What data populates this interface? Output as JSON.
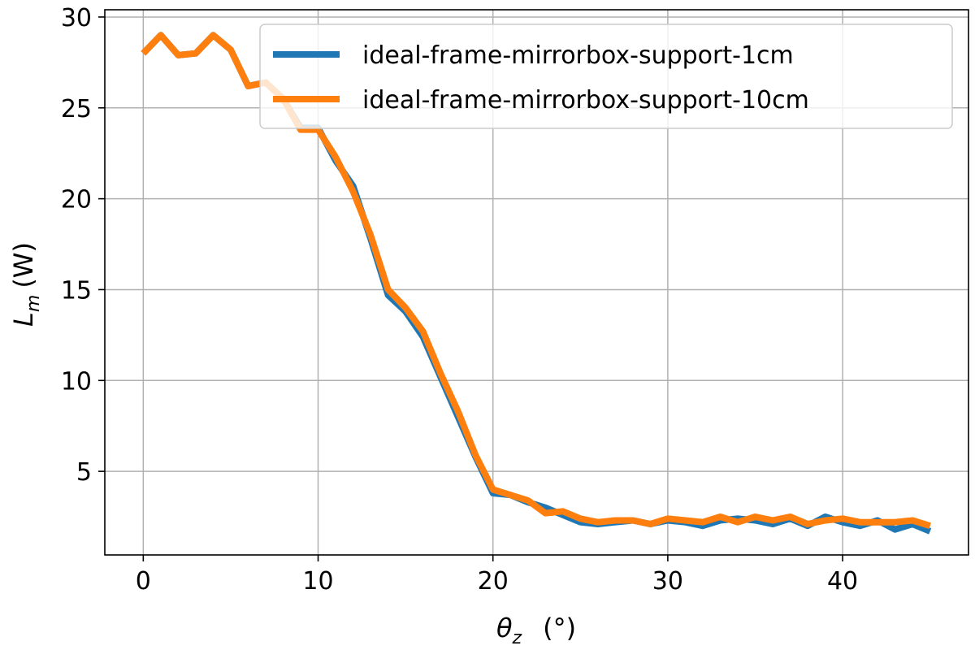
{
  "chart_data": {
    "type": "line",
    "xlabel_symbol": "θ",
    "xlabel_sub": "z",
    "xlabel_unit": "(°)",
    "ylabel_symbol": "L",
    "ylabel_sub": "m",
    "ylabel_unit": "(W)",
    "xlim": [
      -2.2,
      47.2
    ],
    "ylim": [
      0.4,
      30.4
    ],
    "xticks": [
      0,
      10,
      20,
      30,
      40
    ],
    "yticks": [
      5,
      10,
      15,
      20,
      25,
      30
    ],
    "grid": true,
    "legend_position": "top-right",
    "x": [
      0,
      1,
      2,
      3,
      4,
      5,
      6,
      7,
      8,
      9,
      10,
      11,
      12,
      13,
      14,
      15,
      16,
      17,
      18,
      19,
      20,
      21,
      22,
      23,
      24,
      25,
      26,
      27,
      28,
      29,
      30,
      31,
      32,
      33,
      34,
      35,
      36,
      37,
      38,
      39,
      40,
      41,
      42,
      43,
      44,
      45
    ],
    "series": [
      {
        "name": "ideal-frame-mirrorbox-support-1cm",
        "color": "#1f77b4",
        "values": [
          28.0,
          29.0,
          27.9,
          28.0,
          29.0,
          28.2,
          26.2,
          26.4,
          25.5,
          23.9,
          23.9,
          22.1,
          20.7,
          17.8,
          14.7,
          13.8,
          12.4,
          10.2,
          8.0,
          5.8,
          3.8,
          3.7,
          3.3,
          3.0,
          2.6,
          2.2,
          2.1,
          2.2,
          2.3,
          2.1,
          2.3,
          2.2,
          2.0,
          2.3,
          2.4,
          2.3,
          2.1,
          2.4,
          2.0,
          2.5,
          2.2,
          2.0,
          2.3,
          1.8,
          2.1,
          1.7
        ]
      },
      {
        "name": "ideal-frame-mirrorbox-support-10cm",
        "color": "#ff7f0e",
        "values": [
          28.0,
          29.0,
          27.9,
          28.0,
          29.0,
          28.2,
          26.2,
          26.4,
          25.5,
          23.8,
          23.8,
          22.3,
          20.4,
          18.0,
          15.0,
          14.0,
          12.7,
          10.4,
          8.3,
          5.9,
          4.0,
          3.7,
          3.4,
          2.7,
          2.8,
          2.4,
          2.2,
          2.3,
          2.3,
          2.1,
          2.4,
          2.3,
          2.2,
          2.5,
          2.2,
          2.5,
          2.3,
          2.5,
          2.1,
          2.3,
          2.4,
          2.2,
          2.2,
          2.2,
          2.3,
          2.0
        ]
      }
    ]
  }
}
